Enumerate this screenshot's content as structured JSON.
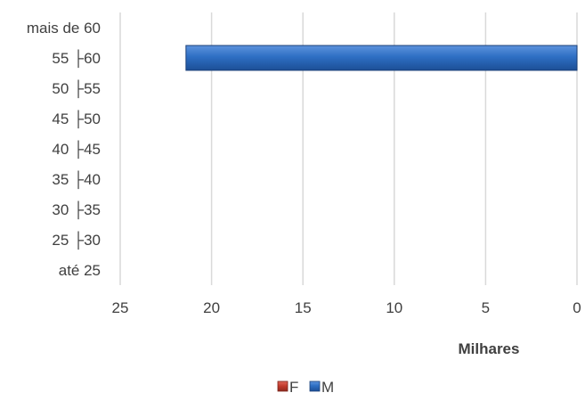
{
  "chart_data": {
    "type": "bar",
    "orientation": "horizontal",
    "categories": [
      "até 25",
      "25 ├30",
      "30 ├35",
      "35 ├40",
      "40 ├45",
      "45 ├50",
      "50 ├55",
      "55 ├60",
      "mais de 60"
    ],
    "series": [
      {
        "name": "F",
        "color": "#c0392b",
        "values": [
          0,
          0,
          0,
          0,
          0,
          0,
          0,
          0,
          0
        ]
      },
      {
        "name": "M",
        "color": "#2e6fc4",
        "values": [
          0,
          0,
          0,
          0,
          0,
          0,
          0,
          21.4,
          0
        ]
      }
    ],
    "xlabel": "Milhares",
    "xlim": [
      25,
      0
    ],
    "xticks": [
      25,
      20,
      15,
      10,
      5,
      0
    ],
    "grid": true,
    "legend_position": "bottom"
  }
}
